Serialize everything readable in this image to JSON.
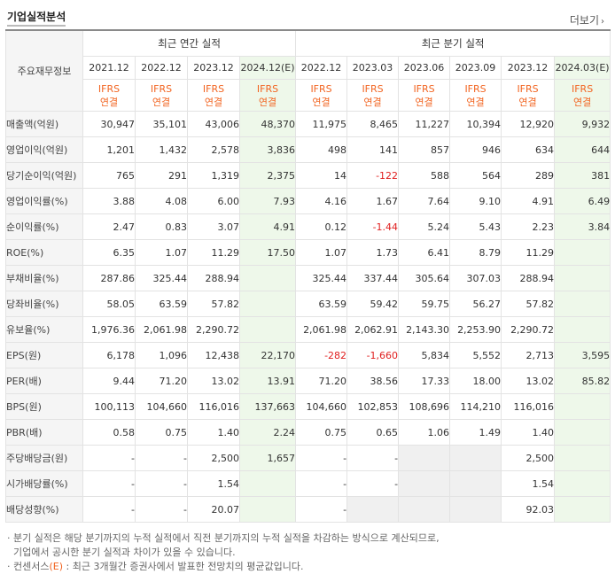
{
  "header": {
    "title": "기업실적분석",
    "more": "더보기",
    "more_arrow": "›"
  },
  "table": {
    "corner_label": "주요재무정보",
    "annual_title": "최근 연간 실적",
    "quarter_title": "최근 분기 실적",
    "annual_periods": [
      "2021.12",
      "2022.12",
      "2023.12",
      "2024.12(E)"
    ],
    "quarter_periods": [
      "2022.12",
      "2023.03",
      "2023.06",
      "2023.09",
      "2023.12",
      "2024.03(E)"
    ],
    "std_line1": "IFRS",
    "std_line2": "연결",
    "rows": [
      {
        "label": "매출액(억원)",
        "a": [
          "30,947",
          "35,101",
          "43,006",
          "48,370"
        ],
        "q": [
          "11,975",
          "8,465",
          "11,227",
          "10,394",
          "12,920",
          "9,932"
        ]
      },
      {
        "label": "영업이익(억원)",
        "a": [
          "1,201",
          "1,432",
          "2,578",
          "3,836"
        ],
        "q": [
          "498",
          "141",
          "857",
          "946",
          "634",
          "644"
        ]
      },
      {
        "label": "당기순이익(억원)",
        "a": [
          "765",
          "291",
          "1,319",
          "2,375"
        ],
        "q": [
          "14",
          "-122",
          "588",
          "564",
          "289",
          "381"
        ]
      },
      {
        "label": "영업이익률(%)",
        "a": [
          "3.88",
          "4.08",
          "6.00",
          "7.93"
        ],
        "q": [
          "4.16",
          "1.67",
          "7.64",
          "9.10",
          "4.91",
          "6.49"
        ]
      },
      {
        "label": "순이익률(%)",
        "a": [
          "2.47",
          "0.83",
          "3.07",
          "4.91"
        ],
        "q": [
          "0.12",
          "-1.44",
          "5.24",
          "5.43",
          "2.23",
          "3.84"
        ]
      },
      {
        "label": "ROE(%)",
        "a": [
          "6.35",
          "1.07",
          "11.29",
          "17.50"
        ],
        "q": [
          "1.07",
          "1.73",
          "6.41",
          "8.79",
          "11.29",
          ""
        ]
      },
      {
        "label": "부채비율(%)",
        "a": [
          "287.86",
          "325.44",
          "288.94",
          ""
        ],
        "q": [
          "325.44",
          "337.44",
          "305.64",
          "307.03",
          "288.94",
          ""
        ]
      },
      {
        "label": "당좌비율(%)",
        "a": [
          "58.05",
          "63.59",
          "57.82",
          ""
        ],
        "q": [
          "63.59",
          "59.42",
          "59.75",
          "56.27",
          "57.82",
          ""
        ]
      },
      {
        "label": "유보율(%)",
        "a": [
          "1,976.36",
          "2,061.98",
          "2,290.72",
          ""
        ],
        "q": [
          "2,061.98",
          "2,062.91",
          "2,143.30",
          "2,253.90",
          "2,290.72",
          ""
        ]
      },
      {
        "label": "EPS(원)",
        "a": [
          "6,178",
          "1,096",
          "12,438",
          "22,170"
        ],
        "q": [
          "-282",
          "-1,660",
          "5,834",
          "5,552",
          "2,713",
          "3,595"
        ]
      },
      {
        "label": "PER(배)",
        "a": [
          "9.44",
          "71.20",
          "13.02",
          "13.91"
        ],
        "q": [
          "71.20",
          "38.56",
          "17.33",
          "18.00",
          "13.02",
          "85.82"
        ]
      },
      {
        "label": "BPS(원)",
        "a": [
          "100,113",
          "104,660",
          "116,016",
          "137,663"
        ],
        "q": [
          "104,660",
          "102,853",
          "108,696",
          "114,210",
          "116,016",
          ""
        ]
      },
      {
        "label": "PBR(배)",
        "a": [
          "0.58",
          "0.75",
          "1.40",
          "2.24"
        ],
        "q": [
          "0.75",
          "0.65",
          "1.06",
          "1.49",
          "1.40",
          ""
        ]
      },
      {
        "label": "주당배당금(원)",
        "a": [
          "-",
          "-",
          "2,500",
          "1,657"
        ],
        "q": [
          "-",
          "-",
          "",
          "",
          "2,500",
          ""
        ]
      },
      {
        "label": "시가배당률(%)",
        "a": [
          "-",
          "-",
          "1.54",
          ""
        ],
        "q": [
          "-",
          "-",
          "",
          "",
          "1.54",
          ""
        ]
      },
      {
        "label": "배당성향(%)",
        "a": [
          "-",
          "-",
          "20.07",
          ""
        ],
        "q": [
          "-",
          "",
          "",
          "",
          "92.03",
          ""
        ]
      }
    ]
  },
  "notes": {
    "line1": "· 분기 실적은 해당 분기까지의 누적 실적에서 직전 분기까지의 누적 실적을 차감하는 방식으로 계산되므로,",
    "line2": "기업에서 공시한 분기 실적과 차이가 있을 수 있습니다.",
    "line3_pre": "· 컨센서스",
    "line3_est": "(E)",
    "line3_post": " : 최근 3개월간 증권사에서 발표한 전망치의 평균값입니다."
  }
}
